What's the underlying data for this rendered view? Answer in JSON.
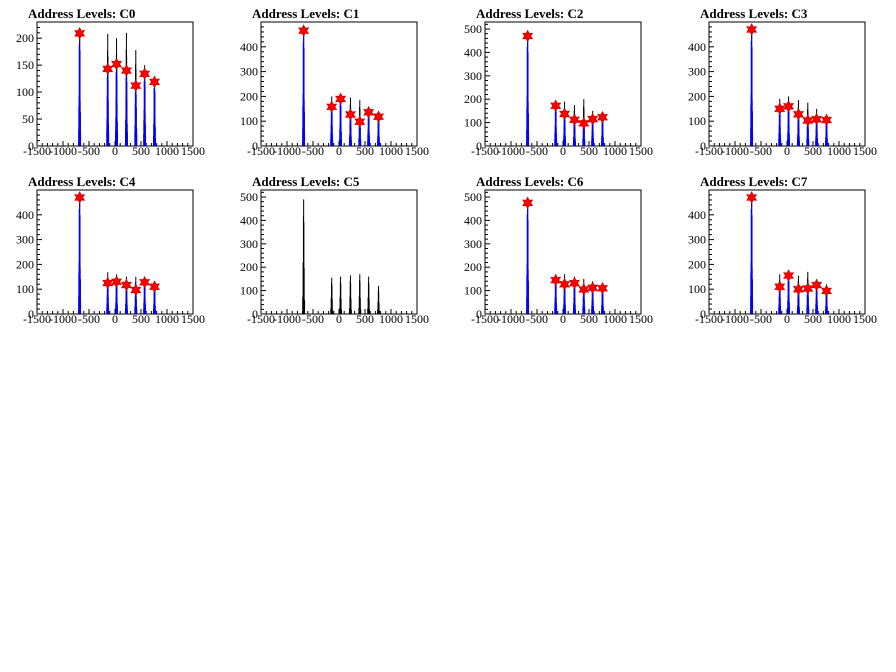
{
  "chart_data": [
    {
      "type": "bar",
      "title": "Address Levels: C0",
      "xlim": [
        -1500,
        1500
      ],
      "ylim": [
        0,
        230
      ],
      "xticks": [
        "-1500",
        "-1000",
        "-500",
        "0",
        "500",
        "1000",
        "1500"
      ],
      "yticks": [
        "0",
        "50",
        "100",
        "150",
        "200"
      ],
      "peaks": [
        {
          "x": -680,
          "value": 209,
          "fitted": true
        },
        {
          "x": -140,
          "value": 143,
          "fitted": true
        },
        {
          "x": 30,
          "value": 152,
          "fitted": true
        },
        {
          "x": 220,
          "value": 140,
          "fitted": true
        },
        {
          "x": 400,
          "value": 112,
          "fitted": true
        },
        {
          "x": 570,
          "value": 134,
          "fitted": true
        },
        {
          "x": 760,
          "value": 119,
          "fitted": true
        }
      ],
      "raw_peaks": [
        {
          "x": -140,
          "value": 208
        },
        {
          "x": 30,
          "value": 200
        },
        {
          "x": 220,
          "value": 210
        },
        {
          "x": 400,
          "value": 178
        },
        {
          "x": 570,
          "value": 150
        },
        {
          "x": 760,
          "value": 127
        }
      ]
    },
    {
      "type": "bar",
      "title": "Address Levels: C1",
      "xlim": [
        -1500,
        1500
      ],
      "ylim": [
        0,
        500
      ],
      "xticks": [
        "-1500",
        "-1000",
        "-500",
        "0",
        "500",
        "1000",
        "1500"
      ],
      "yticks": [
        "0",
        "100",
        "200",
        "300",
        "400"
      ],
      "peaks": [
        {
          "x": -680,
          "value": 465,
          "fitted": true
        },
        {
          "x": -140,
          "value": 158,
          "fitted": true
        },
        {
          "x": 30,
          "value": 190,
          "fitted": true
        },
        {
          "x": 220,
          "value": 127,
          "fitted": true
        },
        {
          "x": 400,
          "value": 98,
          "fitted": true
        },
        {
          "x": 570,
          "value": 136,
          "fitted": true
        },
        {
          "x": 760,
          "value": 118,
          "fitted": true
        }
      ],
      "raw_peaks": [
        {
          "x": -140,
          "value": 200
        },
        {
          "x": 30,
          "value": 205
        },
        {
          "x": 220,
          "value": 195
        },
        {
          "x": 400,
          "value": 185
        },
        {
          "x": 570,
          "value": 150
        },
        {
          "x": 760,
          "value": 132
        }
      ]
    },
    {
      "type": "bar",
      "title": "Address Levels: C2",
      "xlim": [
        -1500,
        1500
      ],
      "ylim": [
        0,
        530
      ],
      "xticks": [
        "-1500",
        "-1000",
        "-500",
        "0",
        "500",
        "1000",
        "1500"
      ],
      "yticks": [
        "0",
        "100",
        "200",
        "300",
        "400",
        "500"
      ],
      "peaks": [
        {
          "x": -680,
          "value": 470,
          "fitted": true
        },
        {
          "x": -140,
          "value": 172,
          "fitted": true
        },
        {
          "x": 30,
          "value": 137,
          "fitted": true
        },
        {
          "x": 220,
          "value": 112,
          "fitted": true
        },
        {
          "x": 400,
          "value": 97,
          "fitted": true
        },
        {
          "x": 570,
          "value": 115,
          "fitted": true
        },
        {
          "x": 760,
          "value": 123,
          "fitted": true
        }
      ],
      "raw_peaks": [
        {
          "x": -140,
          "value": 195
        },
        {
          "x": 30,
          "value": 190
        },
        {
          "x": 220,
          "value": 175
        },
        {
          "x": 400,
          "value": 200
        },
        {
          "x": 570,
          "value": 150
        },
        {
          "x": 760,
          "value": 130
        }
      ]
    },
    {
      "type": "bar",
      "title": "Address Levels: C3",
      "xlim": [
        -1500,
        1500
      ],
      "ylim": [
        0,
        500
      ],
      "xticks": [
        "-1500",
        "-1000",
        "-500",
        "0",
        "500",
        "1000",
        "1500"
      ],
      "yticks": [
        "0",
        "100",
        "200",
        "300",
        "400"
      ],
      "peaks": [
        {
          "x": -680,
          "value": 470,
          "fitted": true
        },
        {
          "x": -140,
          "value": 150,
          "fitted": true
        },
        {
          "x": 30,
          "value": 160,
          "fitted": true
        },
        {
          "x": 220,
          "value": 128,
          "fitted": true
        },
        {
          "x": 400,
          "value": 103,
          "fitted": true
        },
        {
          "x": 570,
          "value": 108,
          "fitted": true
        },
        {
          "x": 760,
          "value": 105,
          "fitted": true
        }
      ],
      "raw_peaks": [
        {
          "x": -140,
          "value": 190
        },
        {
          "x": 30,
          "value": 200
        },
        {
          "x": 220,
          "value": 185
        },
        {
          "x": 400,
          "value": 175
        },
        {
          "x": 570,
          "value": 150
        },
        {
          "x": 760,
          "value": 125
        }
      ]
    },
    {
      "type": "bar",
      "title": "Address Levels: C4",
      "xlim": [
        -1500,
        1500
      ],
      "ylim": [
        0,
        500
      ],
      "xticks": [
        "-1500",
        "-1000",
        "-500",
        "0",
        "500",
        "1000",
        "1500"
      ],
      "yticks": [
        "0",
        "100",
        "200",
        "300",
        "400"
      ],
      "peaks": [
        {
          "x": -680,
          "value": 470,
          "fitted": true
        },
        {
          "x": -140,
          "value": 125,
          "fitted": true
        },
        {
          "x": 30,
          "value": 130,
          "fitted": true
        },
        {
          "x": 220,
          "value": 117,
          "fitted": true
        },
        {
          "x": 400,
          "value": 97,
          "fitted": true
        },
        {
          "x": 570,
          "value": 128,
          "fitted": true
        },
        {
          "x": 760,
          "value": 110,
          "fitted": true
        }
      ],
      "raw_peaks": [
        {
          "x": -140,
          "value": 168
        },
        {
          "x": 30,
          "value": 160
        },
        {
          "x": 220,
          "value": 150
        },
        {
          "x": 400,
          "value": 150
        },
        {
          "x": 570,
          "value": 140
        },
        {
          "x": 760,
          "value": 120
        }
      ]
    },
    {
      "type": "bar",
      "title": "Address Levels: C5",
      "xlim": [
        -1500,
        1500
      ],
      "ylim": [
        0,
        530
      ],
      "xticks": [
        "-1500",
        "-1000",
        "-500",
        "0",
        "500",
        "1000",
        "1500"
      ],
      "yticks": [
        "0",
        "100",
        "200",
        "300",
        "400",
        "500"
      ],
      "peaks": [
        {
          "x": -680,
          "value": 490,
          "fitted": false
        }
      ],
      "raw_peaks": [
        {
          "x": -140,
          "value": 155
        },
        {
          "x": 30,
          "value": 160
        },
        {
          "x": 220,
          "value": 165
        },
        {
          "x": 400,
          "value": 170
        },
        {
          "x": 570,
          "value": 160
        },
        {
          "x": 760,
          "value": 120
        }
      ]
    },
    {
      "type": "bar",
      "title": "Address Levels: C6",
      "xlim": [
        -1500,
        1500
      ],
      "ylim": [
        0,
        530
      ],
      "xticks": [
        "-1500",
        "-1000",
        "-500",
        "0",
        "500",
        "1000",
        "1500"
      ],
      "yticks": [
        "0",
        "100",
        "200",
        "300",
        "400",
        "500"
      ],
      "peaks": [
        {
          "x": -680,
          "value": 475,
          "fitted": true
        },
        {
          "x": -140,
          "value": 145,
          "fitted": true
        },
        {
          "x": 30,
          "value": 127,
          "fitted": true
        },
        {
          "x": 220,
          "value": 132,
          "fitted": true
        },
        {
          "x": 400,
          "value": 105,
          "fitted": true
        },
        {
          "x": 570,
          "value": 112,
          "fitted": true
        },
        {
          "x": 760,
          "value": 110,
          "fitted": true
        }
      ],
      "raw_peaks": [
        {
          "x": -140,
          "value": 165
        },
        {
          "x": 30,
          "value": 170
        },
        {
          "x": 220,
          "value": 160
        },
        {
          "x": 400,
          "value": 150
        },
        {
          "x": 570,
          "value": 140
        },
        {
          "x": 760,
          "value": 125
        }
      ]
    },
    {
      "type": "bar",
      "title": "Address Levels: C7",
      "xlim": [
        -1500,
        1500
      ],
      "ylim": [
        0,
        500
      ],
      "xticks": [
        "-1500",
        "-1000",
        "-500",
        "0",
        "500",
        "1000",
        "1500"
      ],
      "yticks": [
        "0",
        "100",
        "200",
        "300",
        "400"
      ],
      "peaks": [
        {
          "x": -680,
          "value": 470,
          "fitted": true
        },
        {
          "x": -140,
          "value": 110,
          "fitted": true
        },
        {
          "x": 30,
          "value": 155,
          "fitted": true
        },
        {
          "x": 220,
          "value": 100,
          "fitted": true
        },
        {
          "x": 400,
          "value": 103,
          "fitted": true
        },
        {
          "x": 570,
          "value": 117,
          "fitted": true
        },
        {
          "x": 760,
          "value": 93,
          "fitted": true
        }
      ],
      "raw_peaks": [
        {
          "x": -140,
          "value": 160
        },
        {
          "x": 30,
          "value": 165
        },
        {
          "x": 220,
          "value": 155
        },
        {
          "x": 400,
          "value": 170
        },
        {
          "x": 570,
          "value": 140
        },
        {
          "x": 760,
          "value": 120
        }
      ]
    }
  ],
  "colors": {
    "histogram": "#000000",
    "fit": "#0000ff",
    "marker_fill": "#ff0000",
    "marker_stroke": "#cc0000",
    "axis": "#000000"
  }
}
